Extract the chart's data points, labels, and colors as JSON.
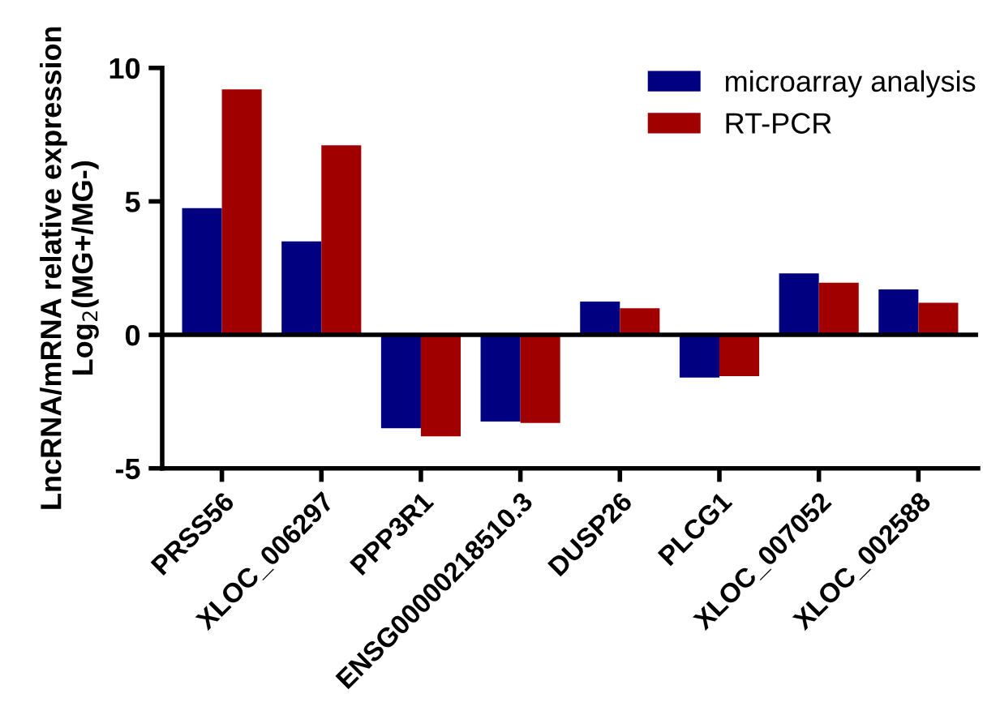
{
  "chart_data": {
    "type": "bar",
    "ylabel": "LncRNA/mRNA relative expression\nLog$_{2}$(MG+/MG-)",
    "categories": [
      "PRSS56",
      "XLOC_006297",
      "PPP3R1",
      "ENSG00000218510.3",
      "DUSP26",
      "PLCG1",
      "XLOC_007052",
      "XLOC_002588"
    ],
    "series": [
      {
        "name": "microarray analysis",
        "color": "#000080",
        "values": [
          4.75,
          3.5,
          -3.5,
          -3.25,
          1.25,
          -1.6,
          2.3,
          1.7
        ]
      },
      {
        "name": "RT-PCR",
        "color": "#a00000",
        "values": [
          9.2,
          7.1,
          -3.8,
          -3.3,
          1.0,
          -1.55,
          1.95,
          1.2
        ]
      }
    ],
    "ylim": [
      -5,
      10
    ],
    "yticks": [
      -5,
      0,
      5,
      10
    ],
    "ref_lines": [
      {
        "axis": "y",
        "value": 0,
        "color": "#000000"
      }
    ],
    "legend": "top right",
    "grid": false
  }
}
